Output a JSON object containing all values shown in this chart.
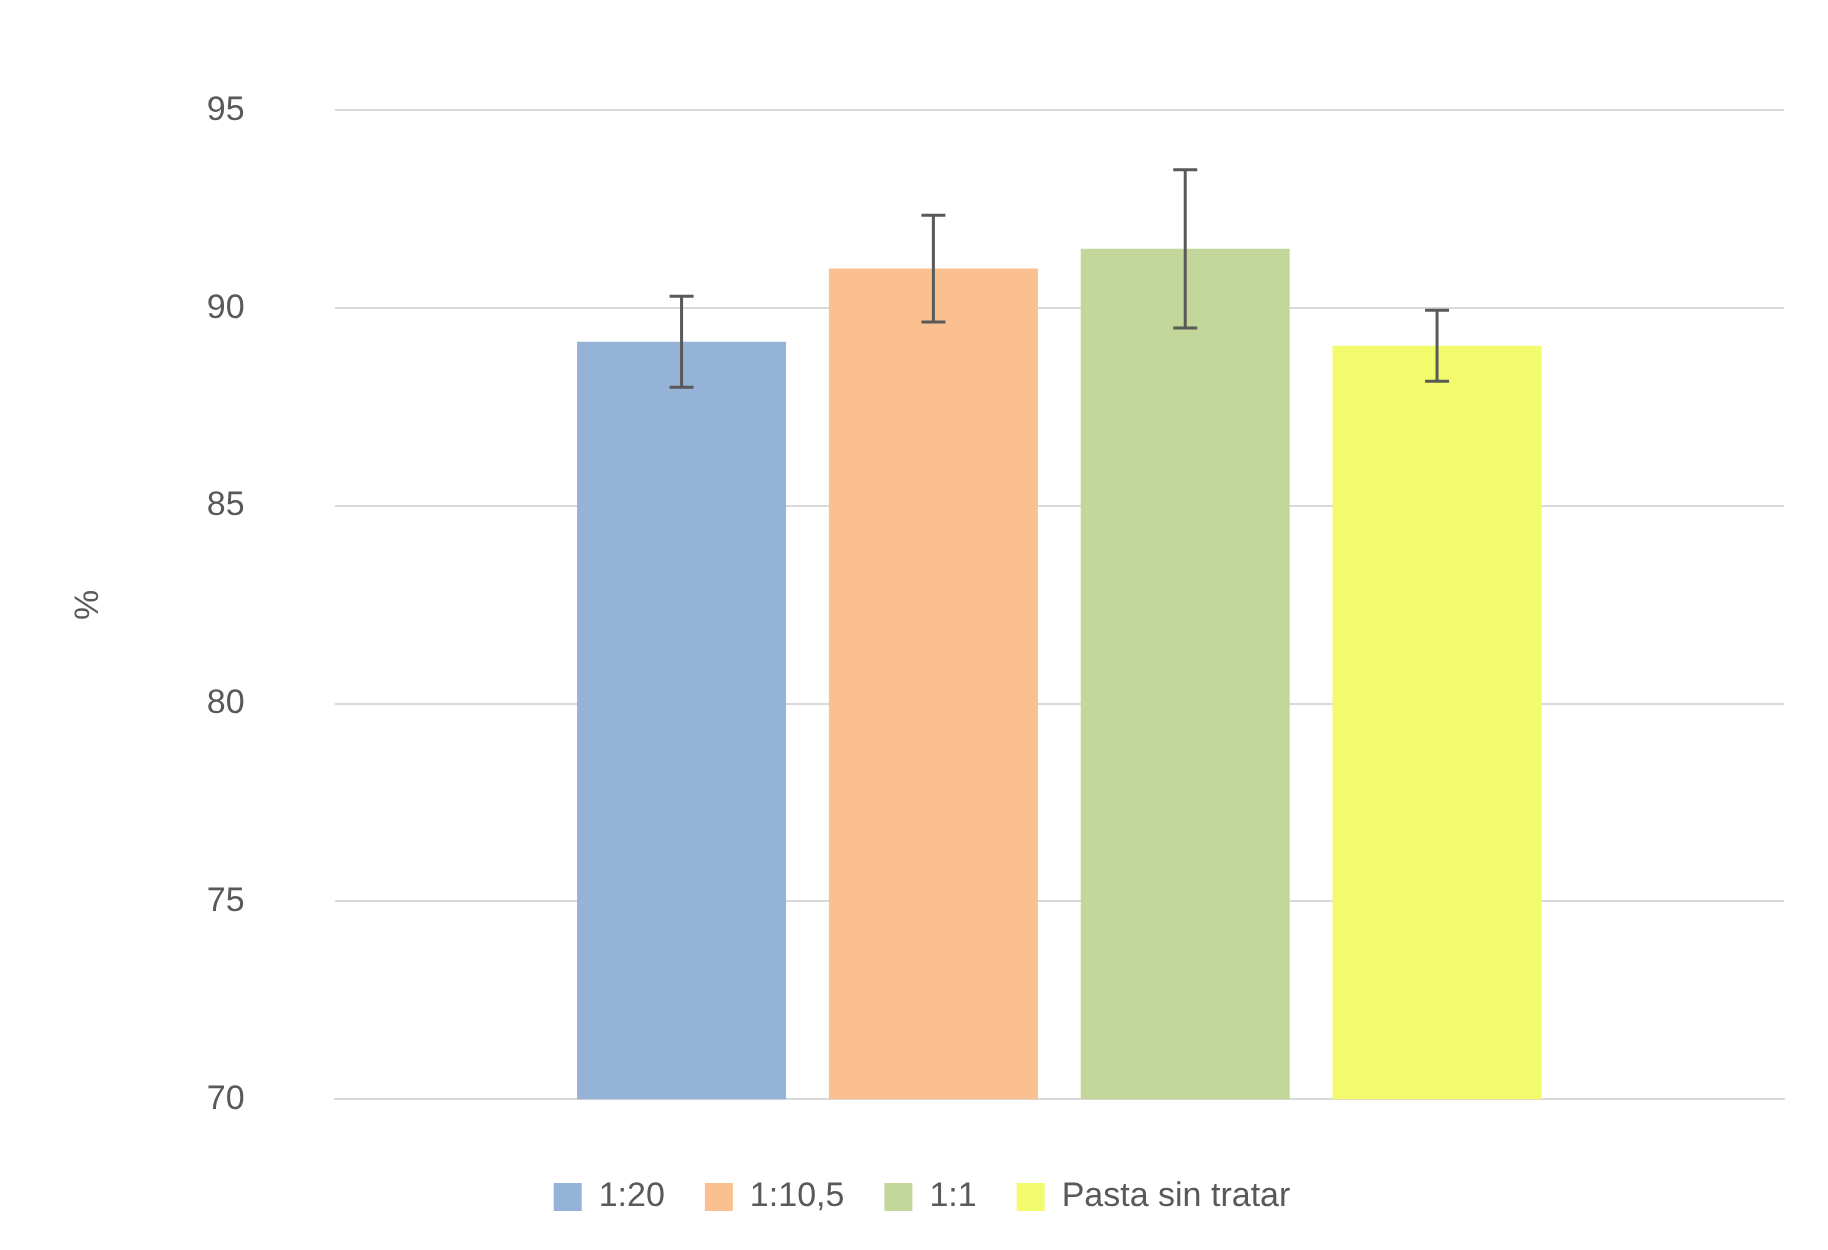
{
  "chart_data": {
    "type": "bar",
    "ylabel": "%",
    "categories": [
      null
    ],
    "series": [
      {
        "name": "1:20",
        "color": "#95b3d7",
        "values": [
          89.15
        ],
        "errors": [
          1.15
        ]
      },
      {
        "name": "1:10,5",
        "color": "#fac090",
        "values": [
          91.0
        ],
        "errors": [
          1.35
        ]
      },
      {
        "name": "1:1",
        "color": "#c4d79b",
        "values": [
          91.5
        ],
        "errors": [
          2.0
        ]
      },
      {
        "name": "Pasta sin tratar",
        "color": "#f2fb6b",
        "values": [
          89.05
        ],
        "errors": [
          0.9
        ]
      }
    ],
    "ylim": [
      70,
      95
    ],
    "yticks": [
      70,
      75,
      80,
      85,
      90,
      95
    ],
    "grid": "y",
    "legend": "bottom"
  }
}
